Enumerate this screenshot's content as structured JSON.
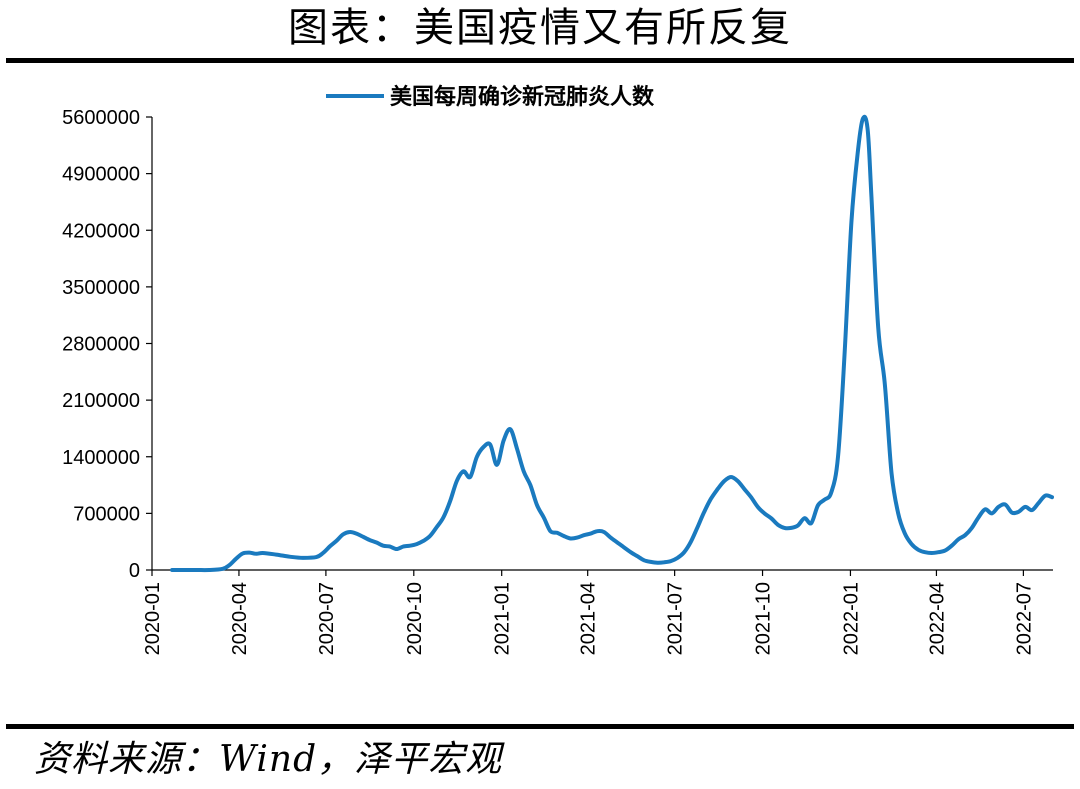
{
  "header": {
    "title": "图表：美国疫情又有所反复"
  },
  "footer": {
    "source": "资料来源：Wind，泽平宏观"
  },
  "chart_data": {
    "type": "line",
    "title": "",
    "xlabel": "",
    "ylabel": "",
    "ylim": [
      0,
      5600000
    ],
    "yticks": [
      "0",
      "700000",
      "1400000",
      "2100000",
      "2800000",
      "3500000",
      "4200000",
      "4900000",
      "5600000"
    ],
    "xlim": [
      "2020-01",
      "2022-08"
    ],
    "xticks": [
      "2020-01",
      "2020-04",
      "2020-07",
      "2020-10",
      "2021-01",
      "2021-04",
      "2021-07",
      "2021-10",
      "2022-01",
      "2022-04",
      "2022-07"
    ],
    "legend_position": "top-center",
    "grid": false,
    "series": [
      {
        "name": "美国每周确诊新冠肺炎人数",
        "color": "#1a7abf",
        "points": [
          [
            "2020-01-22",
            0
          ],
          [
            "2020-02-15",
            0
          ],
          [
            "2020-03-01",
            200
          ],
          [
            "2020-03-15",
            15000
          ],
          [
            "2020-03-22",
            60000
          ],
          [
            "2020-03-29",
            140000
          ],
          [
            "2020-04-05",
            205000
          ],
          [
            "2020-04-12",
            215000
          ],
          [
            "2020-04-19",
            200000
          ],
          [
            "2020-04-26",
            210000
          ],
          [
            "2020-05-10",
            190000
          ],
          [
            "2020-05-24",
            165000
          ],
          [
            "2020-06-07",
            150000
          ],
          [
            "2020-06-21",
            160000
          ],
          [
            "2020-06-28",
            210000
          ],
          [
            "2020-07-05",
            290000
          ],
          [
            "2020-07-12",
            360000
          ],
          [
            "2020-07-19",
            440000
          ],
          [
            "2020-07-26",
            470000
          ],
          [
            "2020-08-02",
            450000
          ],
          [
            "2020-08-09",
            410000
          ],
          [
            "2020-08-16",
            370000
          ],
          [
            "2020-08-23",
            340000
          ],
          [
            "2020-08-30",
            300000
          ],
          [
            "2020-09-06",
            290000
          ],
          [
            "2020-09-13",
            260000
          ],
          [
            "2020-09-20",
            290000
          ],
          [
            "2020-09-27",
            300000
          ],
          [
            "2020-10-04",
            320000
          ],
          [
            "2020-10-11",
            360000
          ],
          [
            "2020-10-18",
            420000
          ],
          [
            "2020-10-25",
            530000
          ],
          [
            "2020-11-01",
            650000
          ],
          [
            "2020-11-08",
            850000
          ],
          [
            "2020-11-15",
            1100000
          ],
          [
            "2020-11-22",
            1220000
          ],
          [
            "2020-11-29",
            1150000
          ],
          [
            "2020-12-06",
            1400000
          ],
          [
            "2020-12-13",
            1520000
          ],
          [
            "2020-12-20",
            1550000
          ],
          [
            "2020-12-27",
            1300000
          ],
          [
            "2021-01-03",
            1600000
          ],
          [
            "2021-01-10",
            1740000
          ],
          [
            "2021-01-17",
            1500000
          ],
          [
            "2021-01-24",
            1220000
          ],
          [
            "2021-01-31",
            1050000
          ],
          [
            "2021-02-07",
            800000
          ],
          [
            "2021-02-14",
            650000
          ],
          [
            "2021-02-21",
            480000
          ],
          [
            "2021-02-28",
            460000
          ],
          [
            "2021-03-07",
            420000
          ],
          [
            "2021-03-14",
            390000
          ],
          [
            "2021-03-21",
            400000
          ],
          [
            "2021-03-28",
            430000
          ],
          [
            "2021-04-04",
            450000
          ],
          [
            "2021-04-11",
            480000
          ],
          [
            "2021-04-18",
            470000
          ],
          [
            "2021-04-25",
            400000
          ],
          [
            "2021-05-02",
            340000
          ],
          [
            "2021-05-09",
            280000
          ],
          [
            "2021-05-16",
            220000
          ],
          [
            "2021-05-23",
            170000
          ],
          [
            "2021-05-30",
            120000
          ],
          [
            "2021-06-06",
            100000
          ],
          [
            "2021-06-13",
            90000
          ],
          [
            "2021-06-20",
            95000
          ],
          [
            "2021-06-27",
            110000
          ],
          [
            "2021-07-04",
            150000
          ],
          [
            "2021-07-11",
            220000
          ],
          [
            "2021-07-18",
            350000
          ],
          [
            "2021-07-25",
            530000
          ],
          [
            "2021-08-01",
            720000
          ],
          [
            "2021-08-08",
            880000
          ],
          [
            "2021-08-15",
            1000000
          ],
          [
            "2021-08-22",
            1100000
          ],
          [
            "2021-08-29",
            1150000
          ],
          [
            "2021-09-05",
            1100000
          ],
          [
            "2021-09-12",
            1000000
          ],
          [
            "2021-09-19",
            900000
          ],
          [
            "2021-09-26",
            780000
          ],
          [
            "2021-10-03",
            700000
          ],
          [
            "2021-10-10",
            640000
          ],
          [
            "2021-10-17",
            560000
          ],
          [
            "2021-10-24",
            520000
          ],
          [
            "2021-10-31",
            520000
          ],
          [
            "2021-11-07",
            550000
          ],
          [
            "2021-11-14",
            640000
          ],
          [
            "2021-11-21",
            580000
          ],
          [
            "2021-11-28",
            800000
          ],
          [
            "2021-12-05",
            870000
          ],
          [
            "2021-12-12",
            960000
          ],
          [
            "2021-12-19",
            1400000
          ],
          [
            "2021-12-26",
            2700000
          ],
          [
            "2022-01-02",
            4300000
          ],
          [
            "2022-01-09",
            5200000
          ],
          [
            "2022-01-14",
            5580000
          ],
          [
            "2022-01-19",
            5450000
          ],
          [
            "2022-01-23",
            4600000
          ],
          [
            "2022-01-30",
            3000000
          ],
          [
            "2022-02-06",
            2300000
          ],
          [
            "2022-02-13",
            1200000
          ],
          [
            "2022-02-20",
            700000
          ],
          [
            "2022-02-27",
            450000
          ],
          [
            "2022-03-06",
            320000
          ],
          [
            "2022-03-13",
            250000
          ],
          [
            "2022-03-20",
            220000
          ],
          [
            "2022-03-27",
            210000
          ],
          [
            "2022-04-03",
            220000
          ],
          [
            "2022-04-10",
            240000
          ],
          [
            "2022-04-17",
            300000
          ],
          [
            "2022-04-24",
            380000
          ],
          [
            "2022-05-01",
            430000
          ],
          [
            "2022-05-08",
            520000
          ],
          [
            "2022-05-15",
            650000
          ],
          [
            "2022-05-22",
            750000
          ],
          [
            "2022-05-29",
            700000
          ],
          [
            "2022-06-05",
            780000
          ],
          [
            "2022-06-12",
            810000
          ],
          [
            "2022-06-19",
            710000
          ],
          [
            "2022-06-26",
            720000
          ],
          [
            "2022-07-03",
            780000
          ],
          [
            "2022-07-10",
            740000
          ],
          [
            "2022-07-17",
            830000
          ],
          [
            "2022-07-24",
            920000
          ],
          [
            "2022-07-31",
            900000
          ]
        ]
      }
    ]
  }
}
